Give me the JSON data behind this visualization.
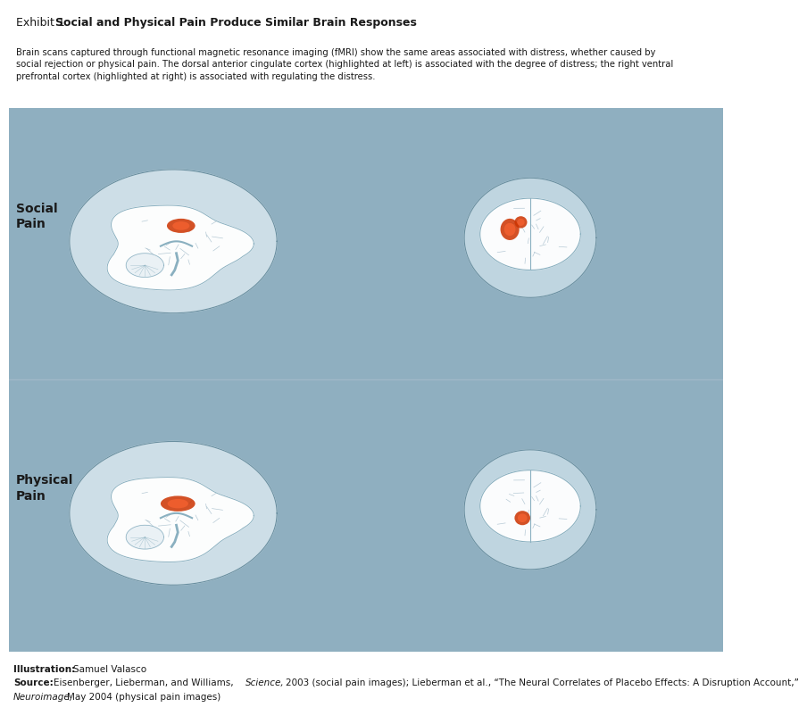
{
  "title_prefix": "Exhibit 1: ",
  "title_bold": "Social and Physical Pain Produce Similar Brain Responses",
  "description": "Brain scans captured through functional magnetic resonance imaging (fMRI) show the same areas associated with distress, whether caused by\nsocial rejection or physical pain. The dorsal anterior cingulate cortex (highlighted at left) is associated with the degree of distress; the right ventral\nprefrontal cortex (highlighted at right) is associated with regulating the distress.",
  "label_social": "Social\nPain",
  "label_physical": "Physical\nPain",
  "illustration_credit": "Illustration: Samuel Valasco",
  "source_text": "Source: Eisenberger, Lieberman, and Williams, Science, 2003 (social pain images); Lieberman et al., “The Neural Correlates of Placebo Effects: A Disruption Account,”\nNeuroimage, May 2004 (physical pain images)",
  "bg_color_panel": "#8fafc0",
  "bg_color_page": "#ffffff",
  "text_color_dark": "#1a1a1a",
  "text_color_label": "#1a1a1a",
  "highlight_color": "#cc3300",
  "divider_color": "#a0b8c8",
  "fig_width": 8.0,
  "fig_height": 7.91
}
